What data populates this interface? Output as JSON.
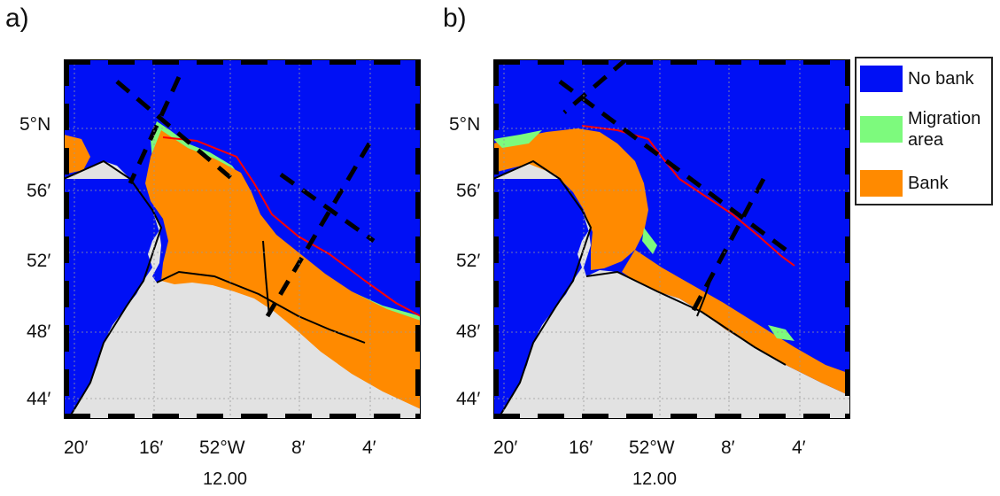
{
  "panels": [
    {
      "label": "a)"
    },
    {
      "label": "b)"
    }
  ],
  "axis": {
    "lat_ticks": [
      "5°N",
      "56′",
      "52′",
      "48′",
      "44′"
    ],
    "lon_ticks": [
      "20′",
      "16′",
      "52°W",
      "8′",
      "4′"
    ],
    "sub_label": "12.00"
  },
  "legend": {
    "items": [
      {
        "label": "No bank",
        "color": "#0010f5"
      },
      {
        "label": "Migration\narea",
        "color": "#7dfa7d"
      },
      {
        "label": "Bank",
        "color": "#ff8a00"
      }
    ]
  },
  "colors": {
    "land": "#e2e2e2",
    "sea": "#0010f5",
    "migration": "#7dfa7d",
    "bank": "#ff8a00",
    "coastline": "#000000",
    "bank_line": "#ff0000"
  }
}
